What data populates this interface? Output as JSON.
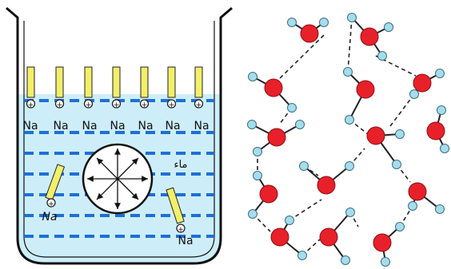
{
  "figure": {
    "ion_labels": [
      "Na",
      "Na",
      "Na",
      "Na",
      "Na",
      "Na",
      "Na"
    ],
    "lower_ion_labels": [
      "Na",
      "Na"
    ],
    "arabic_label": "ماء",
    "colors": {
      "beaker_fill": "#cdeef9",
      "dash": "#1f6fd6",
      "rod": "#f2ef6a",
      "oxygen": "#e8202a",
      "hydrogen": "#a6dcec",
      "bond": "#222222"
    }
  }
}
